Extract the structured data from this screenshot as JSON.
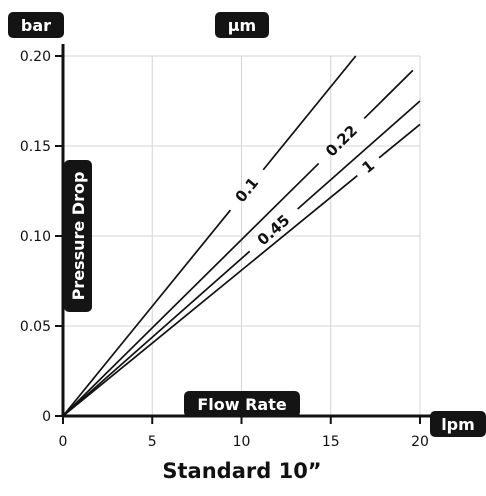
{
  "chart_data": {
    "type": "line",
    "title": "Standard 10”",
    "subtitle": "",
    "xlabel": "Flow Rate",
    "ylabel": "Pressure Drop",
    "x_unit": "lpm",
    "y_unit": "bar",
    "legend_title": "µm",
    "xlim": [
      0,
      20
    ],
    "ylim": [
      0,
      0.2
    ],
    "x_ticks": [
      0,
      5,
      10,
      15,
      20
    ],
    "x_tick_labels": [
      "0",
      "5",
      "10",
      "15",
      "20"
    ],
    "y_ticks": [
      0,
      0.05,
      0.1,
      0.15,
      0.2
    ],
    "y_tick_labels": [
      "0",
      "0.05",
      "0.10",
      "0.15",
      "0.20"
    ],
    "grid": true,
    "series": [
      {
        "name": "0.1",
        "x": [
          0,
          16.4
        ],
        "y": [
          0,
          0.2
        ],
        "label_at": 10.3
      },
      {
        "name": "0.22",
        "x": [
          0,
          19.6
        ],
        "y": [
          0,
          0.192
        ],
        "label_at": 15.6
      },
      {
        "name": "0.45",
        "x": [
          0,
          20
        ],
        "y": [
          0,
          0.175
        ],
        "label_at": 11.8
      },
      {
        "name": "1",
        "x": [
          0,
          20
        ],
        "y": [
          0,
          0.162
        ],
        "label_at": 17.1
      }
    ]
  }
}
